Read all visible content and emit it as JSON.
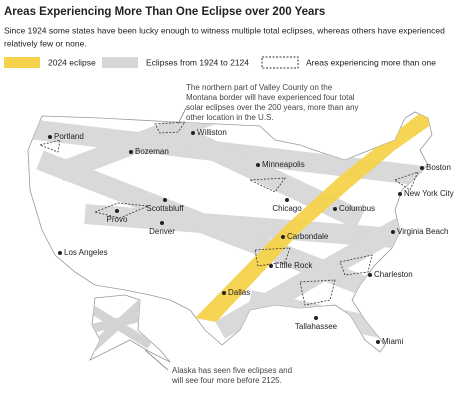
{
  "header": {
    "title": "Areas Experiencing More Than One Eclipse over 200 Years",
    "subtitle": [
      "Since 1924 some states have been lucky enough to witness multiple total eclipses, whereas others have experienced",
      "relatively few or none."
    ]
  },
  "legend": {
    "items": [
      "2024 eclipse",
      "Eclipses from 1924 to 2124",
      "Areas experiencing more than one"
    ]
  },
  "cities": [
    "Portland",
    "Bozeman",
    "Williston",
    "Minneapolis",
    "Boston",
    "New York City",
    "Chicago",
    "Columbus",
    "Provo",
    "Scottsbluff",
    "Denver",
    "Carbondale",
    "Virginia Beach",
    "Los Angeles",
    "Little Rock",
    "Charleston",
    "Dallas",
    "Tallahassee",
    "Miami"
  ],
  "annotations": {
    "montana": [
      "The northern part of Valley County on the",
      "Montana border will have experienced four total",
      "solar eclipses over the 200 years, more than any",
      "other location in the U.S."
    ],
    "alaska": [
      "Alaska has seen five eclipses and",
      "will see four more before 2125."
    ]
  }
}
